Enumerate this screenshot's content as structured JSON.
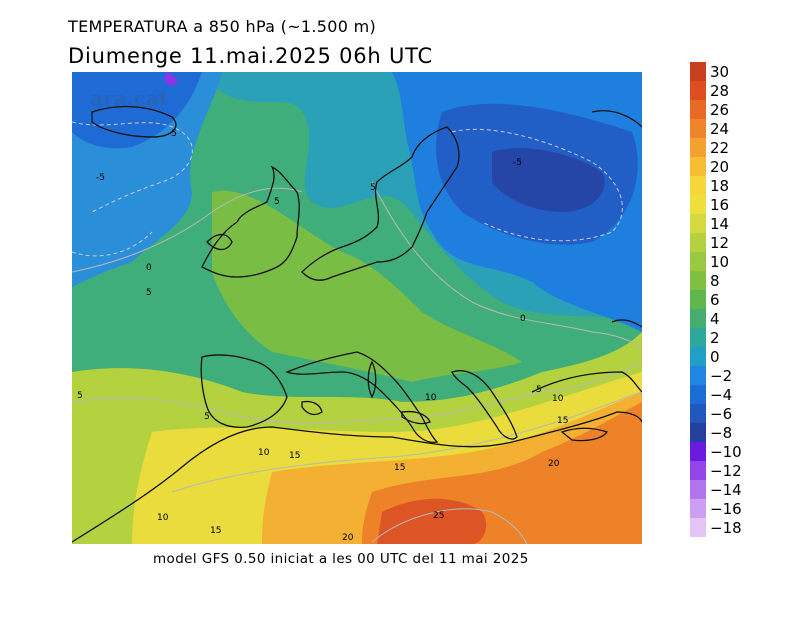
{
  "header": {
    "title": "TEMPERATURA a 850 hPa (~1.500 m)",
    "subtitle": "Diumenge  11.mai.2025 06h UTC"
  },
  "footer": {
    "text": "model GFS 0.50 iniciat a les 00 UTC del 11 mai 2025"
  },
  "watermark": {
    "text": "ara.cat"
  },
  "legend": {
    "items": [
      {
        "label": "30",
        "color": "#c8401e"
      },
      {
        "label": "28",
        "color": "#dd4e21"
      },
      {
        "label": "26",
        "color": "#e86a26"
      },
      {
        "label": "24",
        "color": "#f0842b"
      },
      {
        "label": "22",
        "color": "#f4a22f"
      },
      {
        "label": "20",
        "color": "#f6be33"
      },
      {
        "label": "18",
        "color": "#f7d63a"
      },
      {
        "label": "16",
        "color": "#eedf3c"
      },
      {
        "label": "14",
        "color": "#d3d93e"
      },
      {
        "label": "12",
        "color": "#b6d13f"
      },
      {
        "label": "10",
        "color": "#98c940"
      },
      {
        "label": "8",
        "color": "#7ebf44"
      },
      {
        "label": "6",
        "color": "#5fb64f"
      },
      {
        "label": "4",
        "color": "#45ad6e"
      },
      {
        "label": "2",
        "color": "#2fa89c"
      },
      {
        "label": "0",
        "color": "#229fc4"
      },
      {
        "label": "−2",
        "color": "#1f87e2"
      },
      {
        "label": "−4",
        "color": "#1c6ed6"
      },
      {
        "label": "−6",
        "color": "#2257bd"
      },
      {
        "label": "−8",
        "color": "#253f9c"
      },
      {
        "label": "−10",
        "color": "#6a1be0"
      },
      {
        "label": "−12",
        "color": "#9445e8"
      },
      {
        "label": "−14",
        "color": "#b375ec"
      },
      {
        "label": "−16",
        "color": "#cd9ef1"
      },
      {
        "label": "−18",
        "color": "#e3c6f6"
      }
    ]
  },
  "contour_labels": [
    "-5",
    "-5",
    "-5",
    "5",
    "5",
    "0",
    "5",
    "5",
    "5",
    "-5",
    "0",
    "5",
    "10",
    "10",
    "15",
    "10",
    "15",
    "15",
    "20",
    "10",
    "15",
    "20",
    "25"
  ]
}
